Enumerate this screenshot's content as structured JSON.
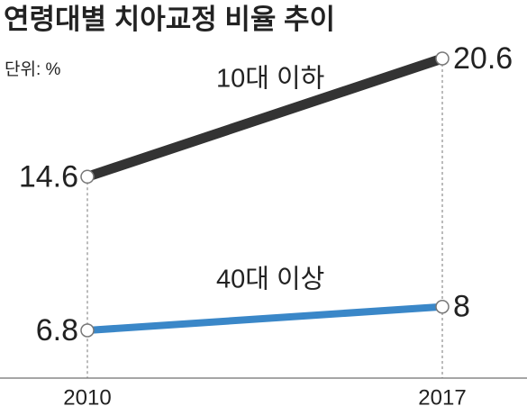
{
  "chart_data": {
    "type": "line",
    "title": "연령대별 치아교정 비율 추이",
    "subtitle": "단위: %",
    "categories": [
      "2010",
      "2017"
    ],
    "series": [
      {
        "name": "10대 이하",
        "color": "#333333",
        "values": [
          14.6,
          20.6
        ]
      },
      {
        "name": "40대 이상",
        "color": "#3a87c8",
        "values": [
          6.8,
          8
        ]
      }
    ]
  }
}
